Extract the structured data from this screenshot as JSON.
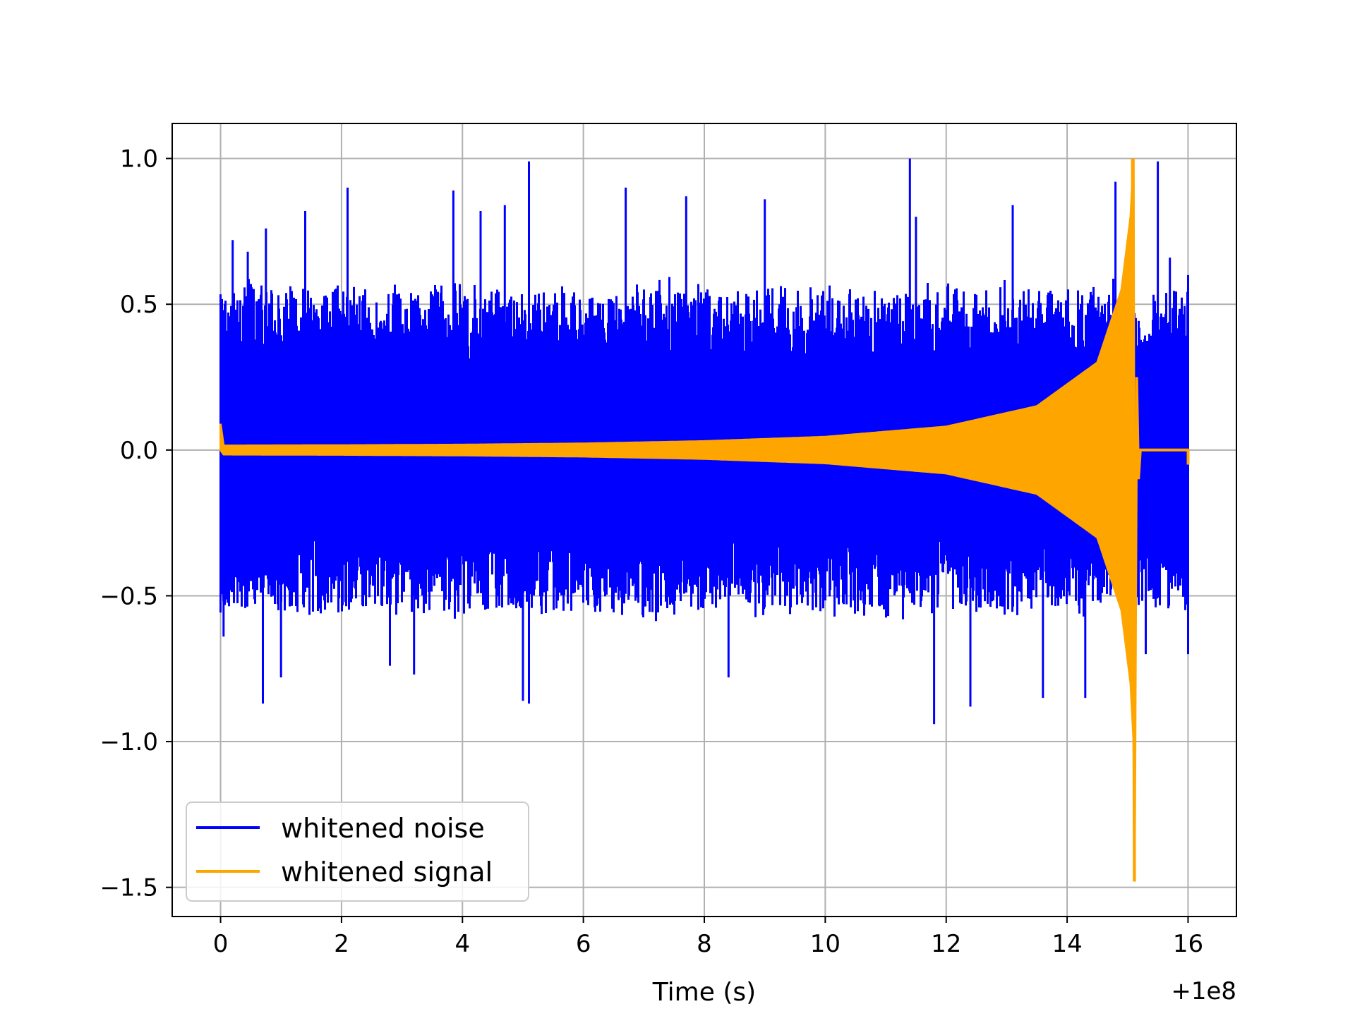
{
  "chart_data": {
    "type": "line",
    "title": "",
    "xlabel": "Time (s)",
    "ylabel": "",
    "x_offset_label": "+1e8",
    "xlim": [
      -0.8,
      16.8
    ],
    "ylim": [
      -1.6,
      1.12
    ],
    "xticks": [
      0,
      2,
      4,
      6,
      8,
      10,
      12,
      14,
      16
    ],
    "yticks": [
      -1.5,
      -1.0,
      -0.5,
      0.0,
      0.5,
      1.0
    ],
    "xtick_labels": [
      "0",
      "2",
      "4",
      "6",
      "8",
      "10",
      "12",
      "14",
      "16"
    ],
    "ytick_labels": [
      "−1.5",
      "−1.0",
      "−0.5",
      "0.0",
      "0.5",
      "1.0"
    ],
    "grid": true,
    "legend_position": "lower-left",
    "series": [
      {
        "name": "whitened noise",
        "color": "#0000ff",
        "x_range": [
          0,
          16
        ],
        "typical_amplitude": 0.55,
        "peak_max": [
          {
            "x": 0.05,
            "y": 0.48
          },
          {
            "x": 0.2,
            "y": 0.72
          },
          {
            "x": 0.45,
            "y": 0.68
          },
          {
            "x": 0.75,
            "y": 0.76
          },
          {
            "x": 1.4,
            "y": 0.82
          },
          {
            "x": 2.1,
            "y": 0.9
          },
          {
            "x": 3.85,
            "y": 0.89
          },
          {
            "x": 4.3,
            "y": 0.82
          },
          {
            "x": 4.7,
            "y": 0.84
          },
          {
            "x": 5.1,
            "y": 0.99
          },
          {
            "x": 6.7,
            "y": 0.9
          },
          {
            "x": 7.7,
            "y": 0.87
          },
          {
            "x": 9.0,
            "y": 0.86
          },
          {
            "x": 11.4,
            "y": 1.0
          },
          {
            "x": 11.5,
            "y": 0.8
          },
          {
            "x": 13.1,
            "y": 0.84
          },
          {
            "x": 14.8,
            "y": 0.92
          },
          {
            "x": 15.5,
            "y": 0.99
          },
          {
            "x": 15.7,
            "y": 0.66
          },
          {
            "x": 16.0,
            "y": 0.6
          }
        ],
        "peak_min": [
          {
            "x": 0.05,
            "y": -0.64
          },
          {
            "x": 0.7,
            "y": -0.87
          },
          {
            "x": 1.0,
            "y": -0.78
          },
          {
            "x": 2.8,
            "y": -0.74
          },
          {
            "x": 3.2,
            "y": -0.77
          },
          {
            "x": 5.1,
            "y": -0.87
          },
          {
            "x": 5.0,
            "y": -0.86
          },
          {
            "x": 8.4,
            "y": -0.78
          },
          {
            "x": 11.8,
            "y": -0.94
          },
          {
            "x": 12.4,
            "y": -0.88
          },
          {
            "x": 13.6,
            "y": -0.85
          },
          {
            "x": 14.3,
            "y": -0.85
          },
          {
            "x": 15.3,
            "y": -0.7
          },
          {
            "x": 16.0,
            "y": -0.7
          }
        ]
      },
      {
        "name": "whitened signal",
        "color": "#ffa500",
        "x_range": [
          0,
          16
        ],
        "start_value": 0.09,
        "merger_time": 15.1,
        "merger_max": 1.0,
        "merger_min": -1.48,
        "envelope": [
          {
            "x": 0.0,
            "y": 0.09
          },
          {
            "x": 0.05,
            "y": 0.015
          },
          {
            "x": 2.0,
            "y": 0.016
          },
          {
            "x": 4.0,
            "y": 0.018
          },
          {
            "x": 6.0,
            "y": 0.022
          },
          {
            "x": 8.0,
            "y": 0.03
          },
          {
            "x": 10.0,
            "y": 0.045
          },
          {
            "x": 12.0,
            "y": 0.08
          },
          {
            "x": 13.5,
            "y": 0.15
          },
          {
            "x": 14.5,
            "y": 0.3
          },
          {
            "x": 14.9,
            "y": 0.55
          },
          {
            "x": 15.05,
            "y": 0.8
          },
          {
            "x": 15.1,
            "y": 1.0
          }
        ],
        "post_merger_value": 0.0,
        "end_value": -0.05
      }
    ]
  }
}
